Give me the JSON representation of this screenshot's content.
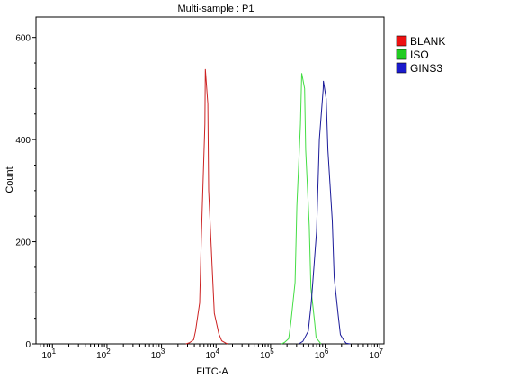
{
  "chart_data": {
    "type": "line",
    "title": "Multi-sample : P1",
    "xlabel": "FITC-A",
    "ylabel": "Count",
    "x_scale": "log",
    "x_range": [
      5,
      12000000
    ],
    "y_range": [
      0,
      640
    ],
    "x_ticks": [
      {
        "value": 10,
        "base": "10",
        "exp": "1"
      },
      {
        "value": 100,
        "base": "10",
        "exp": "2"
      },
      {
        "value": 1000,
        "base": "10",
        "exp": "3"
      },
      {
        "value": 10000,
        "base": "10",
        "exp": "4"
      },
      {
        "value": 100000,
        "base": "10",
        "exp": "5"
      },
      {
        "value": 1000000,
        "base": "10",
        "exp": "6"
      },
      {
        "value": 10000000,
        "base": "10",
        "exp": "7"
      }
    ],
    "y_ticks": [
      0,
      200,
      400,
      600
    ],
    "y_tick_labels": [
      "0",
      "200",
      "400",
      "600"
    ],
    "legend_position": "top-right",
    "series": [
      {
        "name": "BLANK",
        "color": "#cc2222",
        "legend_color": "#ee1111",
        "peak_x": 6500,
        "peak_y": 538,
        "points": [
          [
            2800,
            0
          ],
          [
            3300,
            2
          ],
          [
            3800,
            8
          ],
          [
            4300,
            25
          ],
          [
            4900,
            80
          ],
          [
            5500,
            210
          ],
          [
            6100,
            430
          ],
          [
            6500,
            538
          ],
          [
            6900,
            470
          ],
          [
            7500,
            300
          ],
          [
            8300,
            150
          ],
          [
            9500,
            60
          ],
          [
            11000,
            20
          ],
          [
            13000,
            6
          ],
          [
            15000,
            1
          ],
          [
            17000,
            0
          ]
        ]
      },
      {
        "name": "ISO",
        "color": "#44dd44",
        "legend_color": "#22cc22",
        "peak_x": 380000,
        "peak_y": 530,
        "points": [
          [
            160000,
            0
          ],
          [
            185000,
            3
          ],
          [
            210000,
            10
          ],
          [
            240000,
            40
          ],
          [
            275000,
            120
          ],
          [
            310000,
            270
          ],
          [
            345000,
            430
          ],
          [
            380000,
            530
          ],
          [
            410000,
            500
          ],
          [
            450000,
            380
          ],
          [
            500000,
            230
          ],
          [
            560000,
            110
          ],
          [
            630000,
            40
          ],
          [
            700000,
            12
          ],
          [
            780000,
            3
          ],
          [
            850000,
            0
          ]
        ]
      },
      {
        "name": "GINS3",
        "color": "#1a1a99",
        "legend_color": "#1a1acc",
        "peak_x": 950000,
        "peak_y": 515,
        "points": [
          [
            330000,
            0
          ],
          [
            400000,
            5
          ],
          [
            480000,
            25
          ],
          [
            570000,
            80
          ],
          [
            680000,
            220
          ],
          [
            800000,
            400
          ],
          [
            900000,
            500
          ],
          [
            950000,
            515
          ],
          [
            1020000,
            480
          ],
          [
            1150000,
            380
          ],
          [
            1320000,
            240
          ],
          [
            1500000,
            130
          ],
          [
            1700000,
            55
          ],
          [
            1950000,
            18
          ],
          [
            2200000,
            5
          ],
          [
            2500000,
            1
          ],
          [
            2800000,
            0
          ]
        ]
      }
    ]
  }
}
